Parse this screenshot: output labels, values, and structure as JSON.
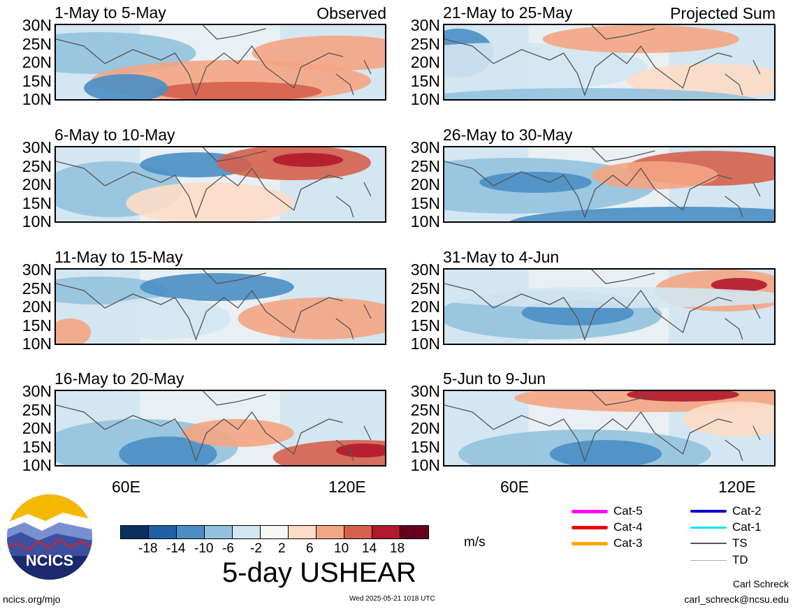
{
  "panels": [
    {
      "title": "1-May to 5-May",
      "tag": "Observed"
    },
    {
      "title": "21-May to 25-May",
      "tag": "Projected Sum"
    },
    {
      "title": "6-May to 10-May",
      "tag": ""
    },
    {
      "title": "26-May to 30-May",
      "tag": ""
    },
    {
      "title": "11-May to 15-May",
      "tag": ""
    },
    {
      "title": "31-May to 4-Jun",
      "tag": ""
    },
    {
      "title": "16-May to 20-May",
      "tag": ""
    },
    {
      "title": "5-Jun to 9-Jun",
      "tag": ""
    }
  ],
  "lat_labels": [
    "30N",
    "25N",
    "20N",
    "15N",
    "10N"
  ],
  "lon_labels": [
    "60E",
    "120E"
  ],
  "colorbar": {
    "colors": [
      "#0b2f5e",
      "#1f5fa8",
      "#4a8ec4",
      "#93c2de",
      "#d3e6f1",
      "#f7f7f7",
      "#fddbc7",
      "#f4a583",
      "#d6604d",
      "#b2182b",
      "#67001f"
    ],
    "ticks": [
      "-18",
      "-14",
      "-10",
      "-6",
      "-2",
      "2",
      "6",
      "10",
      "14",
      "18"
    ],
    "unit": "m/s"
  },
  "title": "5-day USHEAR",
  "legend": [
    {
      "label": "Cat-5",
      "color": "#ff00ff",
      "width": 5
    },
    {
      "label": "Cat-2",
      "color": "#0000cc",
      "width": 4
    },
    {
      "label": "Cat-4",
      "color": "#ee0000",
      "width": 5
    },
    {
      "label": "Cat-1",
      "color": "#00e5ee",
      "width": 3
    },
    {
      "label": "Cat-3",
      "color": "#ffa500",
      "width": 5
    },
    {
      "label": "TS",
      "color": "#555555",
      "width": 2
    },
    {
      "label": "TD",
      "color": "#aaaaaa",
      "width": 1
    }
  ],
  "footer": {
    "left": "ncics.org/mjo",
    "center": "Wed 2025-05-21 1018 UTC",
    "author": "Carl Schreck",
    "email": "carl_schreck@ncsu.edu"
  },
  "logo_text": "NCICS"
}
